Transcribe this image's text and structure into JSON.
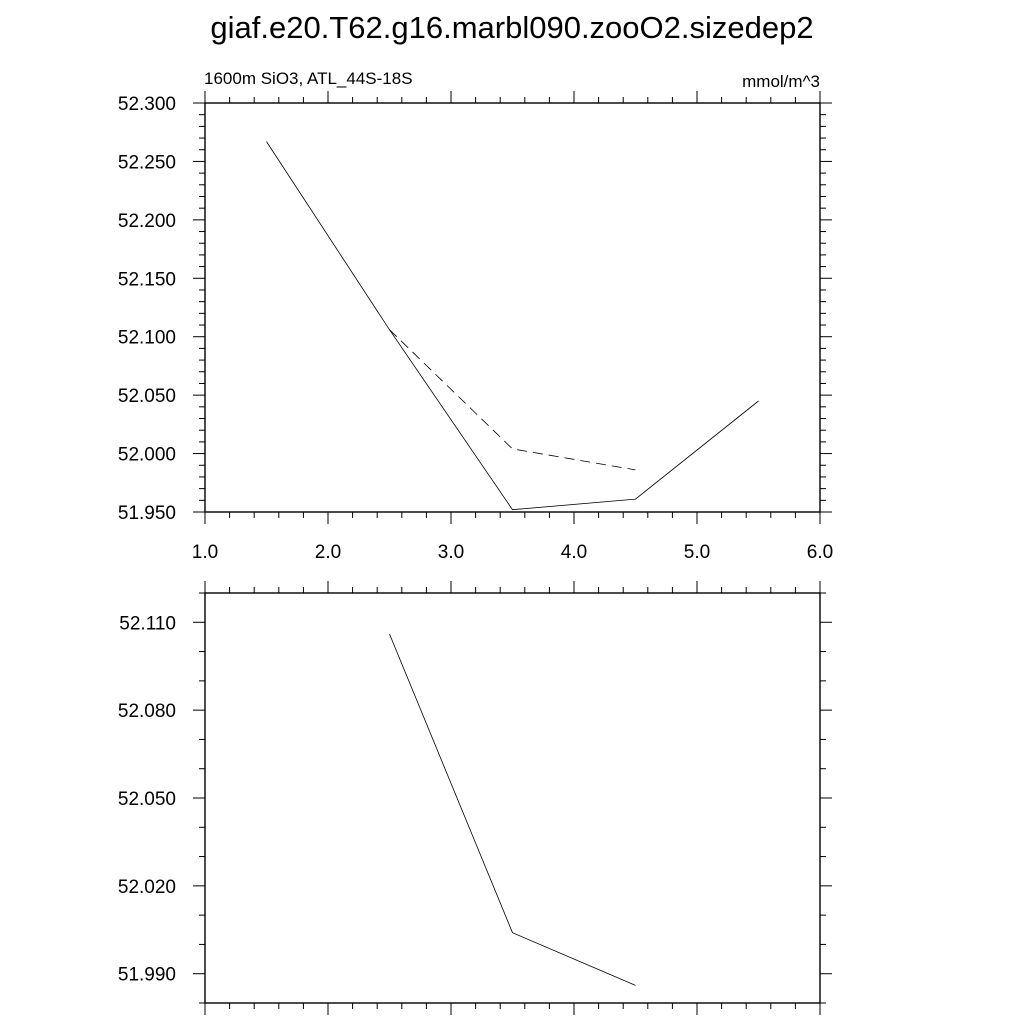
{
  "title": "giaf.e20.T62.g16.marbl090.zooO2.sizedep2",
  "chart_data": [
    {
      "type": "line",
      "left_label": "1600m SiO3, ATL_44S-18S",
      "right_label": "mmol/m^3",
      "xlim": [
        1.0,
        6.0
      ],
      "ylim": [
        51.95,
        52.3
      ],
      "xticks": [
        "1.0",
        "2.0",
        "3.0",
        "4.0",
        "5.0",
        "6.0"
      ],
      "yticks": [
        "51.950",
        "52.000",
        "52.050",
        "52.100",
        "52.150",
        "52.200",
        "52.250",
        "52.300"
      ],
      "grid": false,
      "series": [
        {
          "style": "solid",
          "x": [
            1.5,
            2.5,
            3.5,
            4.5,
            5.5
          ],
          "y": [
            52.267,
            52.106,
            51.952,
            51.961,
            52.045
          ]
        },
        {
          "style": "dashed",
          "x": [
            2.5,
            3.5,
            4.5
          ],
          "y": [
            52.106,
            52.004,
            51.986
          ]
        }
      ]
    },
    {
      "type": "line",
      "xlim": [
        1.0,
        6.0
      ],
      "ylim": [
        51.98,
        52.12
      ],
      "xticks": [],
      "yticks": [
        "51.990",
        "52.020",
        "52.050",
        "52.080",
        "52.110"
      ],
      "grid": false,
      "series": [
        {
          "style": "solid",
          "x": [
            2.5,
            3.5,
            4.5
          ],
          "y": [
            52.106,
            52.004,
            51.986
          ]
        }
      ]
    }
  ]
}
